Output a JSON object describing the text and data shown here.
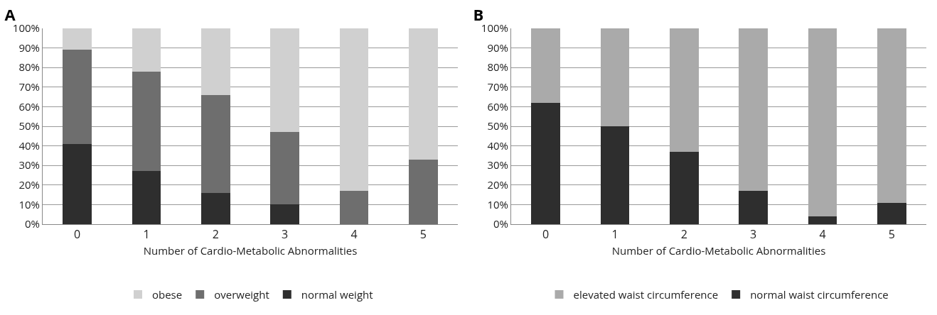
{
  "chart_data": [
    {
      "type": "bar",
      "title": "A",
      "xlabel": "Number of Cardio-Metabolic Abnormalities",
      "categories": [
        "0",
        "1",
        "2",
        "3",
        "4",
        "5"
      ],
      "stacked": true,
      "series": [
        {
          "name": "normal weight",
          "color": "#2e2e2e",
          "values": [
            41,
            27,
            16,
            10,
            0,
            0
          ]
        },
        {
          "name": "overweight",
          "color": "#6e6e6e",
          "values": [
            48,
            51,
            50,
            37,
            17,
            33
          ]
        },
        {
          "name": "obese",
          "color": "#d0d0d0",
          "values": [
            11,
            22,
            34,
            53,
            83,
            67
          ]
        }
      ],
      "ylim": [
        0,
        100
      ],
      "yticks": [
        {
          "value": 0,
          "label": "0%"
        },
        {
          "value": 10,
          "label": "10%"
        },
        {
          "value": 20,
          "label": "20%"
        },
        {
          "value": 30,
          "label": "30%"
        },
        {
          "value": 40,
          "label": "40%"
        },
        {
          "value": 50,
          "label": "50%"
        },
        {
          "value": 60,
          "label": "60%"
        },
        {
          "value": 70,
          "label": "70%"
        },
        {
          "value": 80,
          "label": "80%"
        },
        {
          "value": 90,
          "label": "90%"
        },
        {
          "value": 100,
          "label": "100%"
        }
      ],
      "grid": "y",
      "legend": "bottom"
    },
    {
      "type": "bar",
      "title": "B",
      "xlabel": "Number of Cardio-Metabolic Abnormalities",
      "categories": [
        "0",
        "1",
        "2",
        "3",
        "4",
        "5"
      ],
      "stacked": true,
      "series": [
        {
          "name": "normal waist circumference",
          "color": "#2e2e2e",
          "values": [
            62,
            50,
            37,
            17,
            4,
            11
          ]
        },
        {
          "name": "elevated waist circumference",
          "color": "#aaaaaa",
          "values": [
            38,
            50,
            63,
            83,
            96,
            89
          ]
        }
      ],
      "ylim": [
        0,
        100
      ],
      "yticks": [
        {
          "value": 0,
          "label": "0%"
        },
        {
          "value": 10,
          "label": "10%"
        },
        {
          "value": 20,
          "label": "20%"
        },
        {
          "value": 30,
          "label": "30%"
        },
        {
          "value": 40,
          "label": "40%"
        },
        {
          "value": 50,
          "label": "50%"
        },
        {
          "value": 60,
          "label": "60%"
        },
        {
          "value": 70,
          "label": "70%"
        },
        {
          "value": 80,
          "label": "80%"
        },
        {
          "value": 90,
          "label": "90%"
        },
        {
          "value": 100,
          "label": "100%"
        }
      ],
      "grid": "y",
      "legend": "bottom"
    }
  ]
}
